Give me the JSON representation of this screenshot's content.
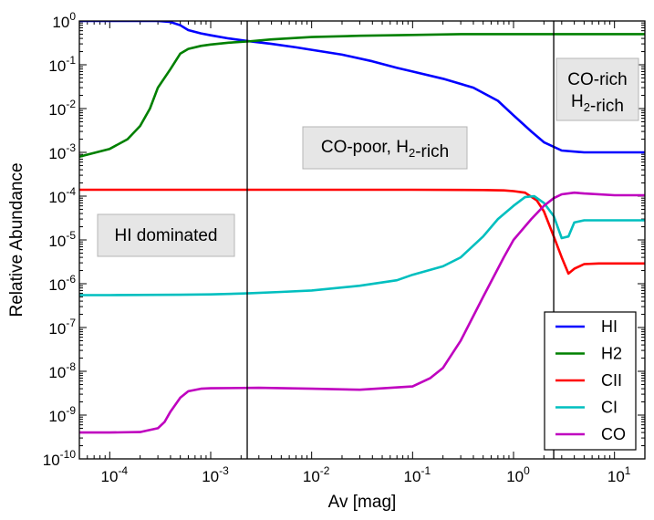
{
  "chart_data": {
    "type": "line",
    "xscale": "log",
    "yscale": "log",
    "xlim": [
      5e-05,
      20
    ],
    "ylim": [
      1e-10,
      1
    ],
    "xlabel": "Av [mag]",
    "ylabel": "Relative Abundance",
    "x_ticks": [
      {
        "value": 0.0001,
        "mant": "10",
        "exp": "-4"
      },
      {
        "value": 0.001,
        "mant": "10",
        "exp": "-3"
      },
      {
        "value": 0.01,
        "mant": "10",
        "exp": "-2"
      },
      {
        "value": 0.1,
        "mant": "10",
        "exp": "-1"
      },
      {
        "value": 1,
        "mant": "10",
        "exp": "0"
      },
      {
        "value": 10,
        "mant": "10",
        "exp": "1"
      }
    ],
    "y_ticks": [
      {
        "value": 1,
        "mant": "10",
        "exp": "0"
      },
      {
        "value": 0.1,
        "mant": "10",
        "exp": "-1"
      },
      {
        "value": 0.01,
        "mant": "10",
        "exp": "-2"
      },
      {
        "value": 0.001,
        "mant": "10",
        "exp": "-3"
      },
      {
        "value": 0.0001,
        "mant": "10",
        "exp": "-4"
      },
      {
        "value": 1e-05,
        "mant": "10",
        "exp": "-5"
      },
      {
        "value": 1e-06,
        "mant": "10",
        "exp": "-6"
      },
      {
        "value": 1e-07,
        "mant": "10",
        "exp": "-7"
      },
      {
        "value": 1e-08,
        "mant": "10",
        "exp": "-8"
      },
      {
        "value": 1e-09,
        "mant": "10",
        "exp": "-9"
      },
      {
        "value": 1e-10,
        "mant": "10",
        "exp": "-10"
      }
    ],
    "vlines": [
      0.0023,
      2.5
    ],
    "series": [
      {
        "name": "HI",
        "color": "#0000ff",
        "x": [
          5e-05,
          0.0001,
          0.0002,
          0.0003,
          0.0004,
          0.0005,
          0.0006,
          0.0008,
          0.001,
          0.0015,
          0.0023,
          0.004,
          0.007,
          0.01,
          0.02,
          0.04,
          0.07,
          0.1,
          0.2,
          0.4,
          0.7,
          1,
          1.5,
          2,
          3,
          5,
          10,
          20
        ],
        "y": [
          1,
          1,
          1,
          1,
          0.95,
          0.8,
          0.62,
          0.52,
          0.47,
          0.4,
          0.35,
          0.3,
          0.25,
          0.22,
          0.17,
          0.12,
          0.085,
          0.07,
          0.048,
          0.03,
          0.015,
          0.007,
          0.003,
          0.0017,
          0.0011,
          0.001,
          0.001,
          0.001
        ]
      },
      {
        "name": "H2",
        "color": "#008000",
        "x": [
          5e-05,
          0.0001,
          0.00015,
          0.0002,
          0.00025,
          0.0003,
          0.0004,
          0.0005,
          0.0006,
          0.0008,
          0.001,
          0.0015,
          0.0023,
          0.004,
          0.01,
          0.03,
          0.1,
          0.3,
          1,
          3,
          10,
          20
        ],
        "y": [
          0.0008,
          0.0012,
          0.002,
          0.004,
          0.01,
          0.03,
          0.08,
          0.18,
          0.23,
          0.27,
          0.29,
          0.32,
          0.34,
          0.38,
          0.43,
          0.46,
          0.48,
          0.5,
          0.5,
          0.5,
          0.5,
          0.5
        ]
      },
      {
        "name": "CII",
        "color": "#ff0000",
        "x": [
          5e-05,
          0.001,
          0.01,
          0.1,
          0.5,
          0.8,
          1,
          1.3,
          1.7,
          2,
          2.5,
          3,
          3.5,
          4,
          5,
          7,
          10,
          20
        ],
        "y": [
          0.00014,
          0.00014,
          0.00014,
          0.00014,
          0.000138,
          0.000135,
          0.00013,
          0.00012,
          8e-05,
          4.5e-05,
          1.2e-05,
          4e-06,
          1.7e-06,
          2.2e-06,
          2.8e-06,
          2.9e-06,
          2.9e-06,
          2.9e-06
        ]
      },
      {
        "name": "CI",
        "color": "#00bfbf",
        "x": [
          5e-05,
          0.0001,
          0.0005,
          0.001,
          0.0023,
          0.005,
          0.01,
          0.03,
          0.07,
          0.1,
          0.2,
          0.3,
          0.5,
          0.7,
          1,
          1.3,
          1.6,
          2,
          2.5,
          3,
          3.5,
          4,
          5,
          7,
          10,
          20
        ],
        "y": [
          5.5e-07,
          5.5e-07,
          5.6e-07,
          5.7e-07,
          6e-07,
          6.5e-07,
          7e-07,
          9e-07,
          1.2e-06,
          1.6e-06,
          2.5e-06,
          4e-06,
          1.2e-05,
          3e-05,
          6e-05,
          9.5e-05,
          0.0001,
          7e-05,
          3.5e-05,
          1.1e-05,
          1.2e-05,
          2.5e-05,
          2.8e-05,
          2.8e-05,
          2.8e-05,
          2.8e-05
        ]
      },
      {
        "name": "CO",
        "color": "#bf00bf",
        "x": [
          5e-05,
          0.0001,
          0.0002,
          0.0003,
          0.00035,
          0.0004,
          0.0005,
          0.0006,
          0.0008,
          0.001,
          0.003,
          0.01,
          0.03,
          0.1,
          0.15,
          0.2,
          0.3,
          0.5,
          0.8,
          1,
          1.5,
          2,
          2.5,
          3,
          4,
          5,
          10,
          20
        ],
        "y": [
          4e-10,
          4e-10,
          4.1e-10,
          5e-10,
          7e-10,
          1.2e-09,
          2.5e-09,
          3.5e-09,
          4e-09,
          4.1e-09,
          4.2e-09,
          4e-09,
          3.8e-09,
          4.5e-09,
          7e-09,
          1.2e-08,
          5e-08,
          5e-07,
          4e-06,
          1e-05,
          3e-05,
          6e-05,
          9e-05,
          0.00011,
          0.00012,
          0.000115,
          0.000105,
          0.000105
        ]
      }
    ],
    "annotations": [
      {
        "id": "hi-dominated",
        "parts": [
          {
            "text": "HI dominated"
          }
        ]
      },
      {
        "id": "co-poor",
        "parts": [
          {
            "text": "CO-poor, H"
          },
          {
            "text": "2",
            "sub": true
          },
          {
            "text": "-rich"
          }
        ]
      },
      {
        "id": "co-rich",
        "line1": "CO-rich",
        "parts2": [
          {
            "text": "H"
          },
          {
            "text": "2",
            "sub": true
          },
          {
            "text": "-rich"
          }
        ]
      }
    ],
    "legend": {
      "position": "lower-right",
      "entries": [
        "HI",
        "H2",
        "CII",
        "CI",
        "CO"
      ]
    }
  }
}
